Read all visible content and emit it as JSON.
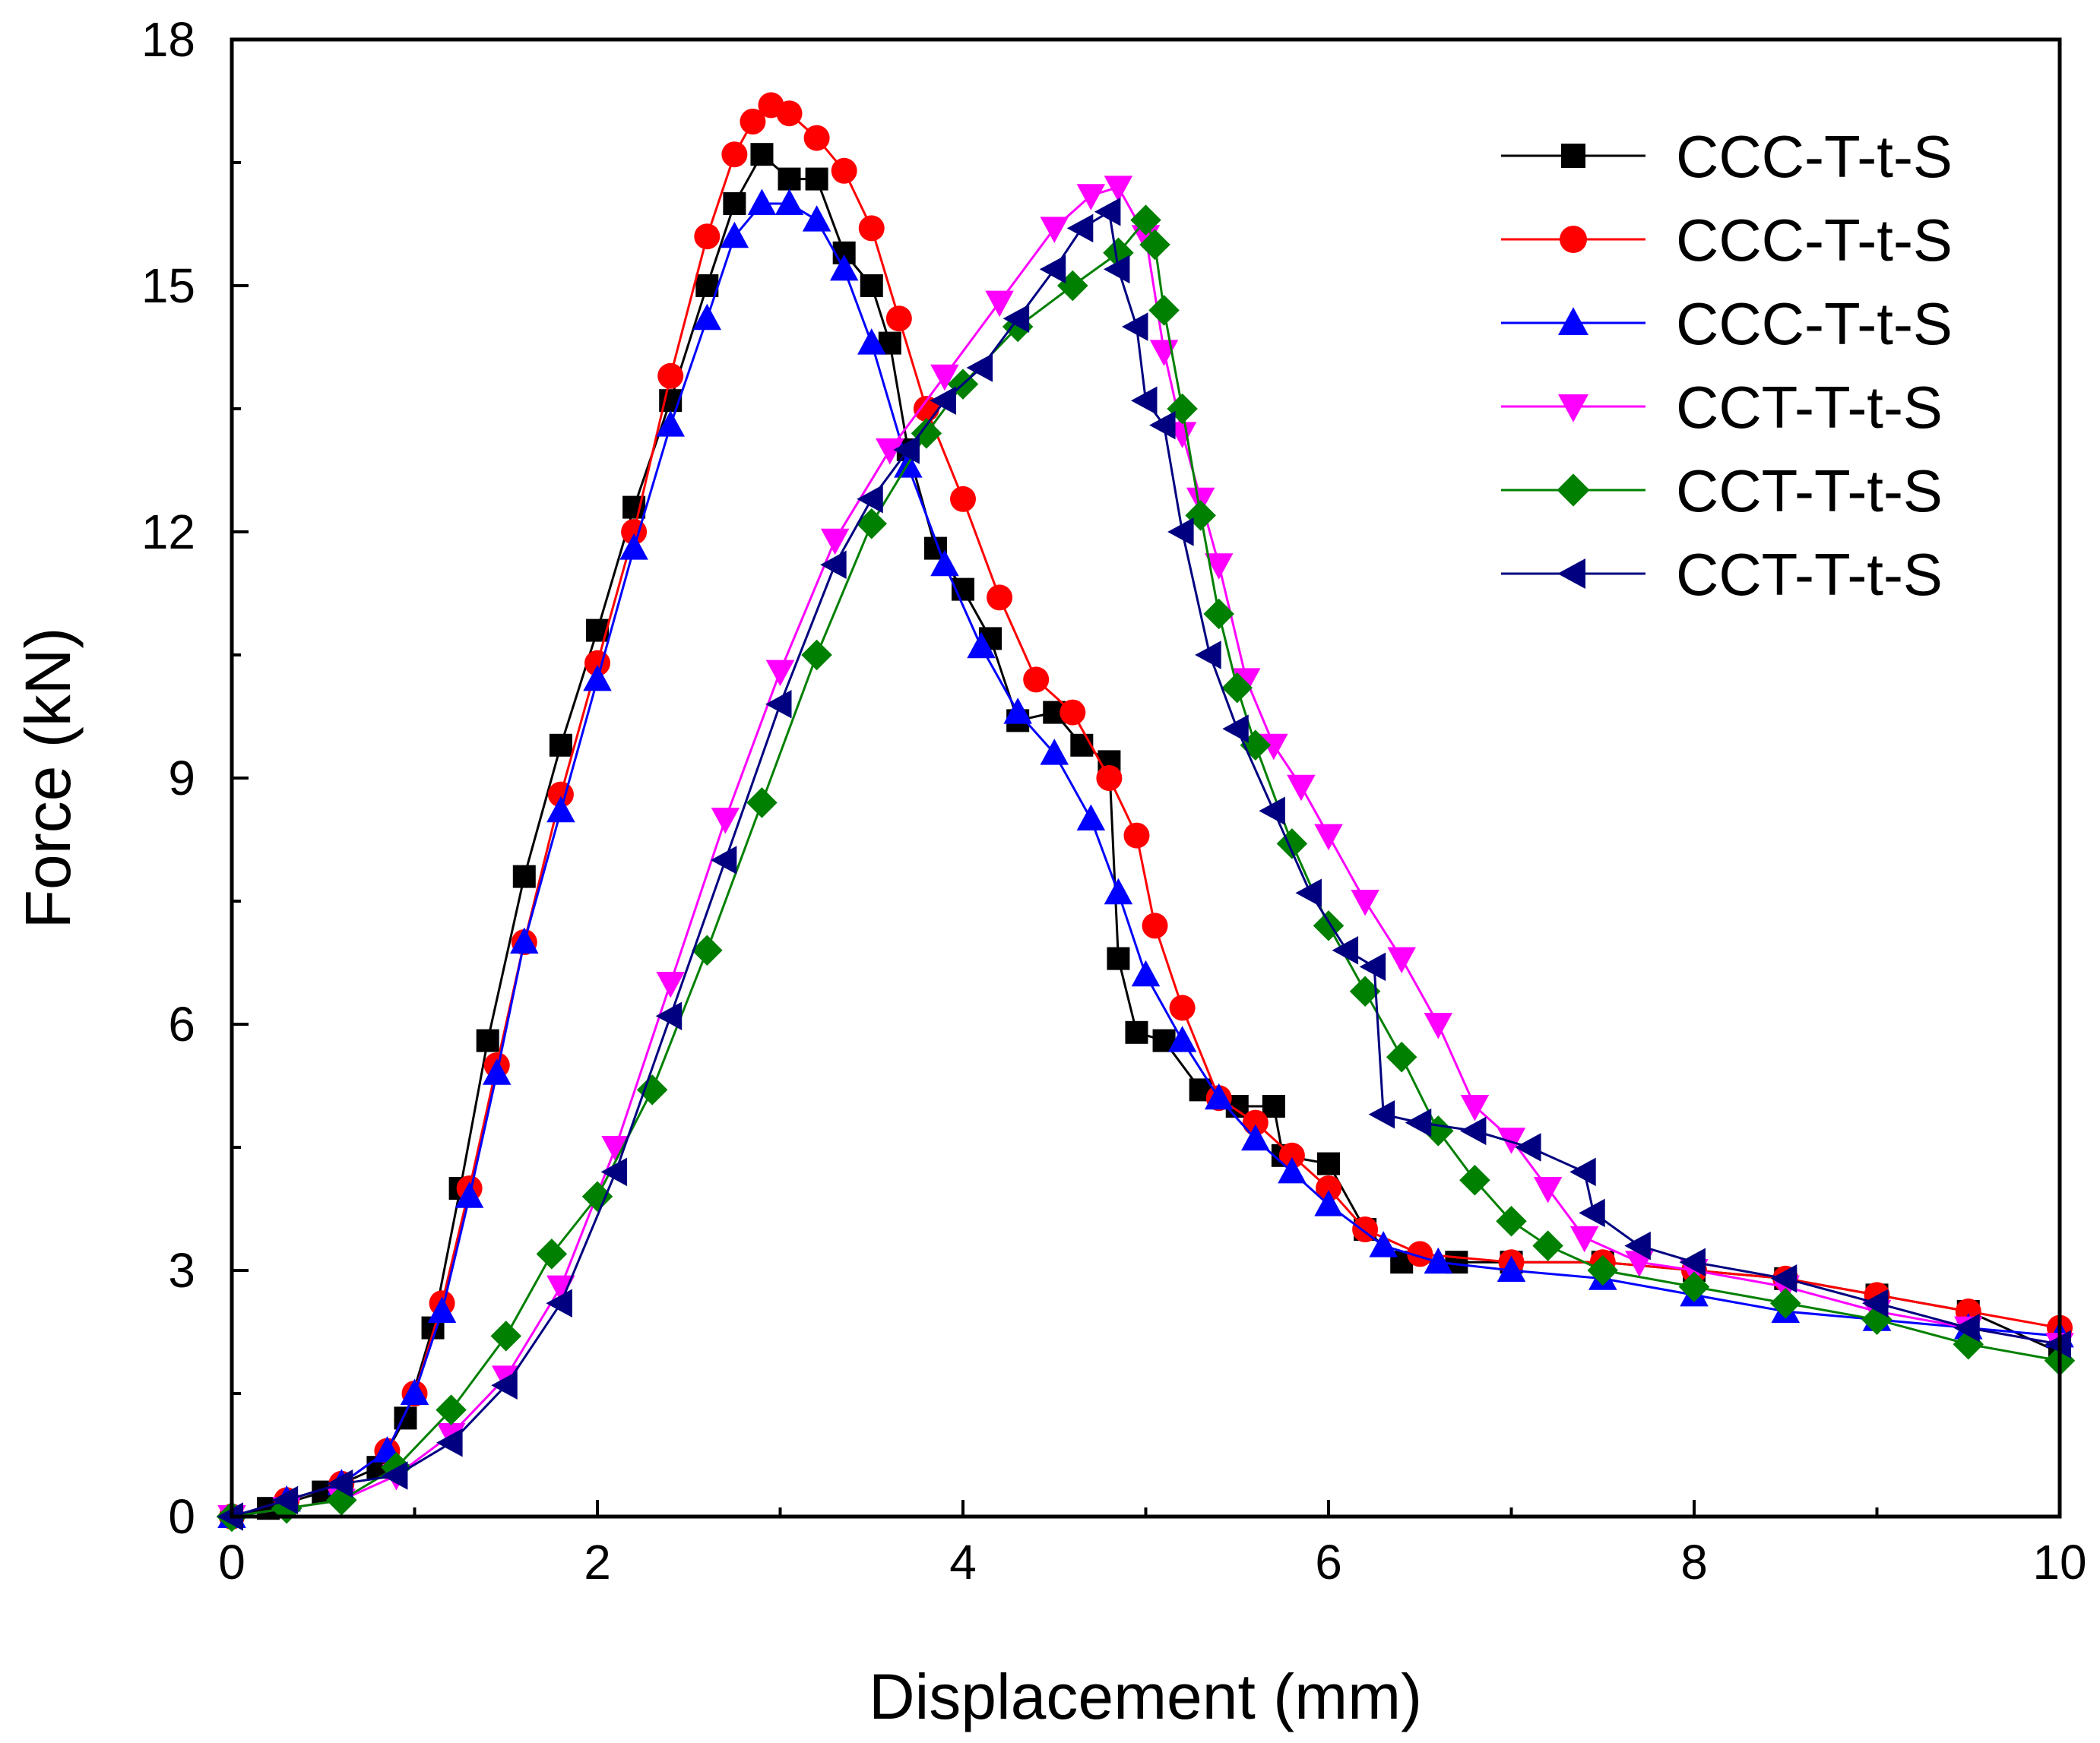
{
  "chart_data": {
    "type": "line",
    "title": "",
    "xlabel": "Displacement (mm)",
    "ylabel": "Force (kN)",
    "xlim": [
      0,
      10
    ],
    "ylim": [
      0,
      18
    ],
    "xticks": [
      0,
      2,
      4,
      6,
      8,
      10
    ],
    "yticks": [
      0,
      3,
      6,
      9,
      12,
      15,
      18
    ],
    "grid": false,
    "legend_position": "top-right",
    "series": [
      {
        "name": "CCC-T-t-S",
        "color": "#000000",
        "marker": "square",
        "x": [
          0,
          0.2,
          0.5,
          0.8,
          0.95,
          1.1,
          1.25,
          1.4,
          1.6,
          1.8,
          2.0,
          2.2,
          2.4,
          2.6,
          2.75,
          2.9,
          3.05,
          3.2,
          3.35,
          3.5,
          3.6,
          3.7,
          3.85,
          4.0,
          4.15,
          4.3,
          4.5,
          4.65,
          4.8,
          4.85,
          4.95,
          5.1,
          5.3,
          5.5,
          5.7,
          5.75,
          6.0,
          6.2,
          6.4,
          6.7,
          7.0,
          7.5,
          8.0,
          8.5,
          9.0,
          9.5,
          10.0
        ],
        "y": [
          0,
          0.1,
          0.3,
          0.6,
          1.2,
          2.3,
          4.0,
          5.8,
          7.8,
          9.4,
          10.8,
          12.3,
          13.6,
          15.0,
          16.0,
          16.6,
          16.3,
          16.3,
          15.4,
          15.0,
          14.3,
          13.0,
          11.8,
          11.3,
          10.7,
          9.7,
          9.8,
          9.4,
          9.2,
          6.8,
          5.9,
          5.8,
          5.2,
          5.0,
          5.0,
          4.4,
          4.3,
          3.5,
          3.1,
          3.1,
          3.1,
          3.1,
          3.0,
          2.9,
          2.7,
          2.5,
          2.0
        ]
      },
      {
        "name": "CCC-T-t-S",
        "color": "#ff0000",
        "marker": "circle",
        "x": [
          0,
          0.3,
          0.6,
          0.85,
          1.0,
          1.15,
          1.3,
          1.45,
          1.6,
          1.8,
          2.0,
          2.2,
          2.4,
          2.6,
          2.75,
          2.85,
          2.95,
          3.05,
          3.2,
          3.35,
          3.5,
          3.65,
          3.8,
          4.0,
          4.2,
          4.4,
          4.6,
          4.8,
          4.95,
          5.05,
          5.2,
          5.4,
          5.6,
          5.8,
          6.0,
          6.2,
          6.5,
          7.0,
          7.5,
          8.0,
          8.5,
          9.0,
          9.5,
          10.0
        ],
        "y": [
          0,
          0.2,
          0.4,
          0.8,
          1.5,
          2.6,
          4.0,
          5.5,
          7.0,
          8.8,
          10.4,
          12.0,
          13.9,
          15.6,
          16.6,
          17.0,
          17.2,
          17.1,
          16.8,
          16.4,
          15.7,
          14.6,
          13.5,
          12.4,
          11.2,
          10.2,
          9.8,
          9.0,
          8.3,
          7.2,
          6.2,
          5.1,
          4.8,
          4.4,
          4.0,
          3.5,
          3.2,
          3.1,
          3.1,
          3.0,
          2.9,
          2.7,
          2.5,
          2.3
        ]
      },
      {
        "name": "CCC-T-t-S",
        "color": "#0000ff",
        "marker": "triangle-up",
        "x": [
          0,
          0.3,
          0.6,
          0.85,
          1.0,
          1.15,
          1.3,
          1.45,
          1.6,
          1.8,
          2.0,
          2.2,
          2.4,
          2.6,
          2.75,
          2.9,
          3.05,
          3.2,
          3.35,
          3.5,
          3.7,
          3.9,
          4.1,
          4.3,
          4.5,
          4.7,
          4.85,
          5.0,
          5.2,
          5.4,
          5.6,
          5.8,
          6.0,
          6.3,
          6.6,
          7.0,
          7.5,
          8.0,
          8.5,
          9.0,
          9.5,
          10.0
        ],
        "y": [
          0,
          0.2,
          0.4,
          0.8,
          1.5,
          2.5,
          3.9,
          5.4,
          7.0,
          8.6,
          10.2,
          11.8,
          13.3,
          14.6,
          15.6,
          16.0,
          16.0,
          15.8,
          15.2,
          14.3,
          12.8,
          11.6,
          10.6,
          9.8,
          9.3,
          8.5,
          7.6,
          6.6,
          5.8,
          5.1,
          4.6,
          4.2,
          3.8,
          3.3,
          3.1,
          3.0,
          2.9,
          2.7,
          2.5,
          2.4,
          2.3,
          2.2
        ]
      },
      {
        "name": "CCT-T-t-S",
        "color": "#ff00ff",
        "marker": "triangle-down",
        "x": [
          0,
          0.3,
          0.6,
          0.9,
          1.2,
          1.5,
          1.8,
          2.1,
          2.4,
          2.7,
          3.0,
          3.3,
          3.6,
          3.9,
          4.2,
          4.5,
          4.7,
          4.85,
          5.0,
          5.1,
          5.2,
          5.3,
          5.4,
          5.55,
          5.7,
          5.85,
          6.0,
          6.2,
          6.4,
          6.6,
          6.8,
          7.0,
          7.2,
          7.4,
          7.7,
          8.0,
          8.5,
          9.0,
          9.5,
          10.0
        ],
        "y": [
          0,
          0.1,
          0.2,
          0.5,
          1.0,
          1.7,
          2.8,
          4.5,
          6.5,
          8.5,
          10.3,
          11.9,
          13.0,
          13.9,
          14.8,
          15.7,
          16.1,
          16.2,
          15.6,
          14.2,
          13.2,
          12.4,
          11.6,
          10.2,
          9.4,
          8.9,
          8.3,
          7.5,
          6.8,
          6.0,
          5.0,
          4.6,
          4.0,
          3.4,
          3.1,
          3.0,
          2.8,
          2.5,
          2.3,
          2.1
        ]
      },
      {
        "name": "CCT-T-t-S",
        "color": "#008000",
        "marker": "diamond",
        "x": [
          0,
          0.3,
          0.6,
          0.9,
          1.2,
          1.5,
          1.75,
          2.0,
          2.3,
          2.6,
          2.9,
          3.2,
          3.5,
          3.8,
          4.0,
          4.3,
          4.6,
          4.85,
          5.0,
          5.05,
          5.1,
          5.2,
          5.3,
          5.4,
          5.5,
          5.6,
          5.8,
          6.0,
          6.2,
          6.4,
          6.6,
          6.8,
          7.0,
          7.2,
          7.5,
          8.0,
          8.5,
          9.0,
          9.5,
          10.0
        ],
        "y": [
          0,
          0.1,
          0.2,
          0.6,
          1.3,
          2.2,
          3.2,
          3.9,
          5.2,
          6.9,
          8.7,
          10.5,
          12.1,
          13.2,
          13.8,
          14.5,
          15.0,
          15.4,
          15.8,
          15.5,
          14.7,
          13.5,
          12.2,
          11.0,
          10.1,
          9.4,
          8.2,
          7.2,
          6.4,
          5.6,
          4.7,
          4.1,
          3.6,
          3.3,
          3.0,
          2.8,
          2.6,
          2.4,
          2.1,
          1.9
        ]
      },
      {
        "name": "CCT-T-t-S",
        "color": "#000080",
        "marker": "triangle-left",
        "x": [
          0,
          0.3,
          0.6,
          0.9,
          1.2,
          1.5,
          1.8,
          2.1,
          2.4,
          2.7,
          3.0,
          3.3,
          3.5,
          3.7,
          3.9,
          4.1,
          4.3,
          4.5,
          4.65,
          4.8,
          4.85,
          4.95,
          5.0,
          5.1,
          5.2,
          5.35,
          5.5,
          5.7,
          5.9,
          6.1,
          6.25,
          6.3,
          6.5,
          6.8,
          7.1,
          7.4,
          7.45,
          7.7,
          8.0,
          8.5,
          9.0,
          9.5,
          10.0
        ],
        "y": [
          0,
          0.2,
          0.4,
          0.5,
          0.9,
          1.6,
          2.6,
          4.2,
          6.1,
          8.0,
          9.9,
          11.6,
          12.4,
          13.0,
          13.6,
          14.0,
          14.6,
          15.2,
          15.7,
          15.9,
          15.2,
          14.5,
          13.6,
          13.3,
          12.0,
          10.5,
          9.6,
          8.6,
          7.6,
          6.9,
          6.7,
          4.9,
          4.8,
          4.7,
          4.5,
          4.2,
          3.7,
          3.3,
          3.1,
          2.9,
          2.6,
          2.3,
          2.1
        ]
      }
    ]
  }
}
